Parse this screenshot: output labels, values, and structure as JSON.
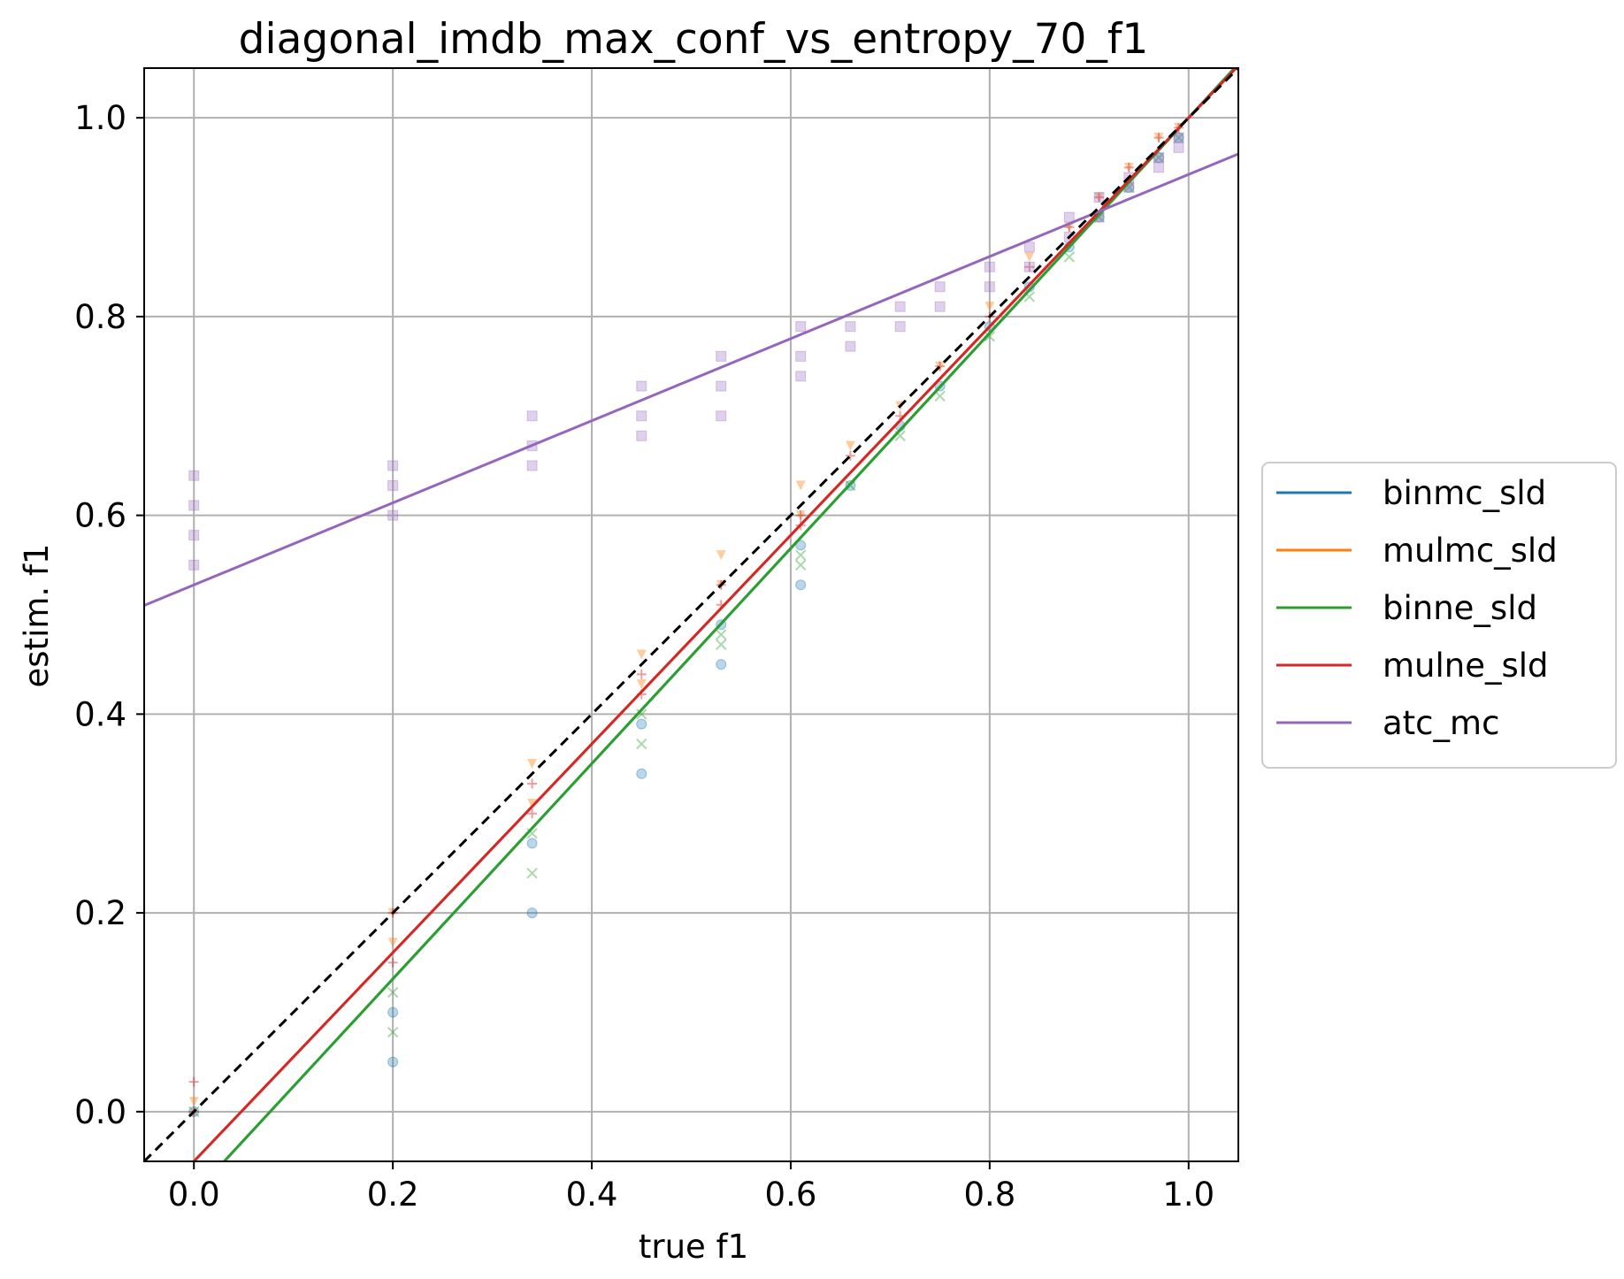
{
  "chart_data": {
    "type": "scatter",
    "title": "diagonal_imdb_max_conf_vs_entropy_70_f1",
    "xlabel": "true f1",
    "ylabel": "estim. f1",
    "xlim": [
      -0.05,
      1.05
    ],
    "ylim": [
      -0.05,
      1.05
    ],
    "xticks": [
      0.0,
      0.2,
      0.4,
      0.6,
      0.8,
      1.0
    ],
    "yticks": [
      0.0,
      0.2,
      0.4,
      0.6,
      0.8,
      1.0
    ],
    "xtick_labels": [
      "0.0",
      "0.2",
      "0.4",
      "0.6",
      "0.8",
      "1.0"
    ],
    "ytick_labels": [
      "0.0",
      "0.2",
      "0.4",
      "0.6",
      "0.8",
      "1.0"
    ],
    "grid": true,
    "legend_position": "right, outside plot",
    "diagonal_reference": {
      "style": "dashed",
      "color": "#000000",
      "x": [
        -0.05,
        1.05
      ],
      "y": [
        -0.05,
        1.05
      ]
    },
    "x_clusters": [
      0.0,
      0.2,
      0.34,
      0.45,
      0.53,
      0.61,
      0.66,
      0.71,
      0.75,
      0.8,
      0.84,
      0.88,
      0.91,
      0.94,
      0.97,
      0.99
    ],
    "series": [
      {
        "name": "binmc_sld",
        "color": "#1f77b4",
        "marker": "circle",
        "fit_line": {
          "slope": 1.083,
          "intercept": -0.083
        },
        "points": [
          [
            0.0,
            0.0
          ],
          [
            0.2,
            0.1
          ],
          [
            0.2,
            0.05
          ],
          [
            0.34,
            0.27
          ],
          [
            0.34,
            0.2
          ],
          [
            0.45,
            0.39
          ],
          [
            0.45,
            0.34
          ],
          [
            0.53,
            0.49
          ],
          [
            0.53,
            0.45
          ],
          [
            0.61,
            0.57
          ],
          [
            0.61,
            0.53
          ],
          [
            0.66,
            0.63
          ],
          [
            0.71,
            0.69
          ],
          [
            0.75,
            0.73
          ],
          [
            0.8,
            0.79
          ],
          [
            0.84,
            0.83
          ],
          [
            0.88,
            0.87
          ],
          [
            0.91,
            0.9
          ],
          [
            0.94,
            0.93
          ],
          [
            0.97,
            0.96
          ],
          [
            0.99,
            0.98
          ]
        ]
      },
      {
        "name": "mulmc_sld",
        "color": "#ff7f0e",
        "marker": "triangle_down",
        "fit_line": {
          "slope": 1.05,
          "intercept": -0.05
        },
        "points": [
          [
            0.0,
            0.01
          ],
          [
            0.2,
            0.17
          ],
          [
            0.2,
            0.2
          ],
          [
            0.34,
            0.31
          ],
          [
            0.34,
            0.35
          ],
          [
            0.45,
            0.43
          ],
          [
            0.45,
            0.46
          ],
          [
            0.53,
            0.53
          ],
          [
            0.53,
            0.56
          ],
          [
            0.61,
            0.6
          ],
          [
            0.61,
            0.63
          ],
          [
            0.66,
            0.67
          ],
          [
            0.71,
            0.71
          ],
          [
            0.75,
            0.75
          ],
          [
            0.8,
            0.81
          ],
          [
            0.84,
            0.86
          ],
          [
            0.88,
            0.89
          ],
          [
            0.91,
            0.92
          ],
          [
            0.94,
            0.95
          ],
          [
            0.97,
            0.98
          ],
          [
            0.99,
            0.99
          ]
        ]
      },
      {
        "name": "binne_sld",
        "color": "#2ca02c",
        "marker": "x",
        "fit_line": {
          "slope": 1.083,
          "intercept": -0.083
        },
        "points": [
          [
            0.0,
            0.0
          ],
          [
            0.2,
            0.12
          ],
          [
            0.2,
            0.08
          ],
          [
            0.34,
            0.28
          ],
          [
            0.34,
            0.24
          ],
          [
            0.45,
            0.4
          ],
          [
            0.45,
            0.37
          ],
          [
            0.53,
            0.48
          ],
          [
            0.53,
            0.47
          ],
          [
            0.61,
            0.56
          ],
          [
            0.61,
            0.55
          ],
          [
            0.66,
            0.63
          ],
          [
            0.71,
            0.68
          ],
          [
            0.75,
            0.72
          ],
          [
            0.8,
            0.78
          ],
          [
            0.84,
            0.82
          ],
          [
            0.88,
            0.86
          ],
          [
            0.91,
            0.9
          ],
          [
            0.94,
            0.93
          ],
          [
            0.97,
            0.96
          ],
          [
            0.99,
            0.98
          ]
        ]
      },
      {
        "name": "mulne_sld",
        "color": "#d62728",
        "marker": "plus",
        "fit_line": {
          "slope": 1.05,
          "intercept": -0.05
        },
        "points": [
          [
            0.0,
            0.0
          ],
          [
            0.0,
            0.03
          ],
          [
            0.2,
            0.15
          ],
          [
            0.2,
            0.2
          ],
          [
            0.34,
            0.3
          ],
          [
            0.34,
            0.33
          ],
          [
            0.45,
            0.42
          ],
          [
            0.45,
            0.44
          ],
          [
            0.53,
            0.51
          ],
          [
            0.53,
            0.53
          ],
          [
            0.61,
            0.59
          ],
          [
            0.61,
            0.6
          ],
          [
            0.66,
            0.66
          ],
          [
            0.71,
            0.7
          ],
          [
            0.75,
            0.75
          ],
          [
            0.8,
            0.8
          ],
          [
            0.84,
            0.85
          ],
          [
            0.88,
            0.89
          ],
          [
            0.91,
            0.92
          ],
          [
            0.94,
            0.95
          ],
          [
            0.97,
            0.98
          ],
          [
            0.99,
            0.99
          ]
        ]
      },
      {
        "name": "atc_mc",
        "color": "#9467bd",
        "marker": "square",
        "fit_line": {
          "slope": 0.413,
          "intercept": 0.53
        },
        "points": [
          [
            0.0,
            0.55
          ],
          [
            0.0,
            0.58
          ],
          [
            0.0,
            0.61
          ],
          [
            0.0,
            0.64
          ],
          [
            0.2,
            0.6
          ],
          [
            0.2,
            0.63
          ],
          [
            0.2,
            0.65
          ],
          [
            0.34,
            0.65
          ],
          [
            0.34,
            0.67
          ],
          [
            0.34,
            0.7
          ],
          [
            0.45,
            0.68
          ],
          [
            0.45,
            0.7
          ],
          [
            0.45,
            0.73
          ],
          [
            0.53,
            0.7
          ],
          [
            0.53,
            0.73
          ],
          [
            0.53,
            0.76
          ],
          [
            0.61,
            0.74
          ],
          [
            0.61,
            0.76
          ],
          [
            0.61,
            0.79
          ],
          [
            0.66,
            0.77
          ],
          [
            0.66,
            0.79
          ],
          [
            0.71,
            0.79
          ],
          [
            0.71,
            0.81
          ],
          [
            0.75,
            0.81
          ],
          [
            0.75,
            0.83
          ],
          [
            0.8,
            0.83
          ],
          [
            0.8,
            0.85
          ],
          [
            0.84,
            0.85
          ],
          [
            0.84,
            0.87
          ],
          [
            0.88,
            0.88
          ],
          [
            0.88,
            0.9
          ],
          [
            0.91,
            0.9
          ],
          [
            0.91,
            0.92
          ],
          [
            0.94,
            0.93
          ],
          [
            0.94,
            0.94
          ],
          [
            0.97,
            0.95
          ],
          [
            0.97,
            0.96
          ],
          [
            0.99,
            0.97
          ],
          [
            0.99,
            0.98
          ]
        ]
      }
    ]
  }
}
